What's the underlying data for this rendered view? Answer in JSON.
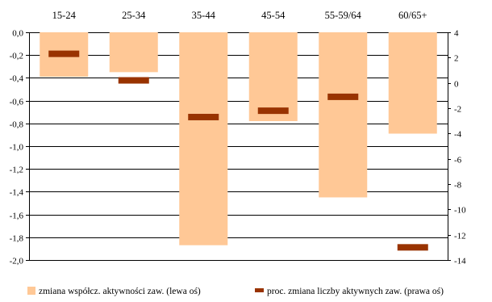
{
  "chart_data": {
    "type": "bar",
    "categories": [
      "15-24",
      "25-34",
      "35-44",
      "45-54",
      "55-59/64",
      "60/65+"
    ],
    "series": [
      {
        "name": "zmiana współcz. aktywności zaw. (lewa oś)",
        "kind": "bar",
        "axis": "left",
        "color": "#FFC896",
        "values": [
          -0.39,
          -0.35,
          -1.87,
          -0.78,
          -1.45,
          -0.89
        ]
      },
      {
        "name": "proc. zmiana liczby aktywnych zaw. (prawa oś)",
        "kind": "marker",
        "axis": "right",
        "color": "#993300",
        "values": [
          2.3,
          0.2,
          -2.7,
          -2.2,
          -1.1,
          -13.0
        ]
      }
    ],
    "left_axis": {
      "ylim": [
        -2.0,
        0.0
      ],
      "ticks": [
        0.0,
        -0.2,
        -0.4,
        -0.6,
        -0.8,
        -1.0,
        -1.2,
        -1.4,
        -1.6,
        -1.8,
        -2.0
      ],
      "tick_labels": [
        "0,0",
        "-0,2",
        "-0,4",
        "-0,6",
        "-0,8",
        "-1,0",
        "-1,2",
        "-1,4",
        "-1,6",
        "-1,8",
        "-2,0"
      ]
    },
    "right_axis": {
      "ylim": [
        -14,
        4
      ],
      "ticks": [
        4,
        2,
        0,
        -2,
        -4,
        -6,
        -8,
        -10,
        -12,
        -14
      ],
      "tick_labels": [
        "4",
        "2",
        "0",
        "-2",
        "-4",
        "-6",
        "-8",
        "-10",
        "-12",
        "-14"
      ]
    },
    "grid": true,
    "legend_position": "bottom"
  }
}
